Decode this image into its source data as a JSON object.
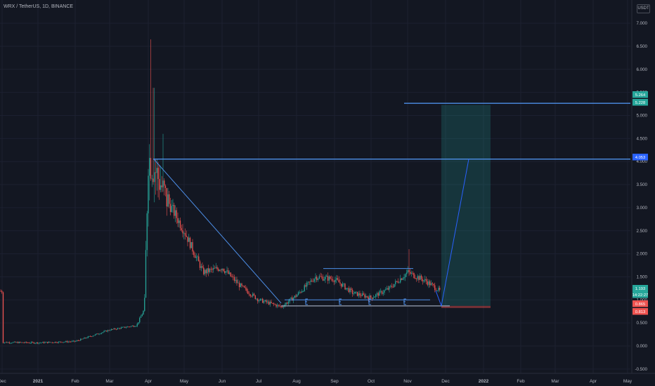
{
  "header": {
    "symbol": "WRX / TetherUS, 1D, BINANCE",
    "currency": "USDT"
  },
  "chart_data": {
    "type": "candlestick",
    "symbol": "WRX / TetherUS",
    "interval": "1D",
    "exchange": "BINANCE",
    "y_axis": {
      "ticks": [
        "7.000",
        "6.500",
        "6.000",
        "5.500",
        "5.000",
        "4.500",
        "4.000",
        "3.500",
        "3.000",
        "2.500",
        "2.000",
        "1.500",
        "1.000",
        "0.500",
        "0.000",
        "-0.500"
      ],
      "range": [
        -0.5,
        7.0
      ]
    },
    "x_axis": {
      "ticks": [
        "Dec",
        "2021",
        "Feb",
        "Mar",
        "Apr",
        "May",
        "Jun",
        "Jul",
        "Aug",
        "Sep",
        "Oct",
        "Nov",
        "Dec",
        "2022",
        "Feb",
        "Mar",
        "Apr",
        "May"
      ]
    },
    "price_labels": [
      {
        "text": "5.264",
        "price": 5.264,
        "color": "#26a69a"
      },
      {
        "text": "5.228",
        "price": 5.228,
        "color": "#26a69a"
      },
      {
        "text": "4.053",
        "price": 4.053,
        "color": "#2962ff"
      },
      {
        "text": "1.193",
        "price": 1.193,
        "color": "#26a69a"
      },
      {
        "text": "14:22:27",
        "price": 1.06,
        "color": "#26a69a"
      },
      {
        "text": "0.865",
        "price": 0.865,
        "color": "#ef5350"
      },
      {
        "text": "0.813",
        "price": 0.813,
        "color": "#ef5350"
      }
    ],
    "price_path": [
      [
        "Dec",
        0.08
      ],
      [
        "2021",
        0.07
      ],
      [
        "Feb",
        0.1
      ],
      [
        "Mar",
        0.35
      ],
      [
        "Mar+0.7",
        0.45
      ],
      [
        "Apr-0.1",
        0.8
      ],
      [
        "Apr",
        4.1
      ],
      [
        "Apr+0.2",
        3.8
      ],
      [
        "Apr+0.5",
        3.2
      ],
      [
        "May",
        2.5
      ],
      [
        "May+0.5",
        1.6
      ],
      [
        "Jun",
        1.7
      ],
      [
        "Jun+0.5",
        1.3
      ],
      [
        "Jul",
        1.0
      ],
      [
        "Jul+0.6",
        0.85
      ],
      [
        "Aug",
        1.1
      ],
      [
        "Aug+0.5",
        1.5
      ],
      [
        "Sep",
        1.45
      ],
      [
        "Sep+0.5",
        1.15
      ],
      [
        "Oct",
        1.05
      ],
      [
        "Oct+0.5",
        1.25
      ],
      [
        "Nov",
        1.6
      ],
      [
        "Nov+0.5",
        1.4
      ],
      [
        "Dec-0.2",
        1.19
      ]
    ],
    "annotations": {
      "horizontal_lines": [
        5.264,
        4.053
      ],
      "trendline": {
        "from": [
          "Apr",
          4.05
        ],
        "to": [
          "Jul+0.55",
          0.93
        ]
      },
      "range_top": 1.68,
      "range_bottom": 1.0,
      "support": 0.87,
      "target_box": {
        "entry": 0.87,
        "target": 5.228
      },
      "projection": [
        [
          "Dec",
          0.87
        ],
        [
          "2022-0.45",
          4.053
        ]
      ]
    }
  }
}
